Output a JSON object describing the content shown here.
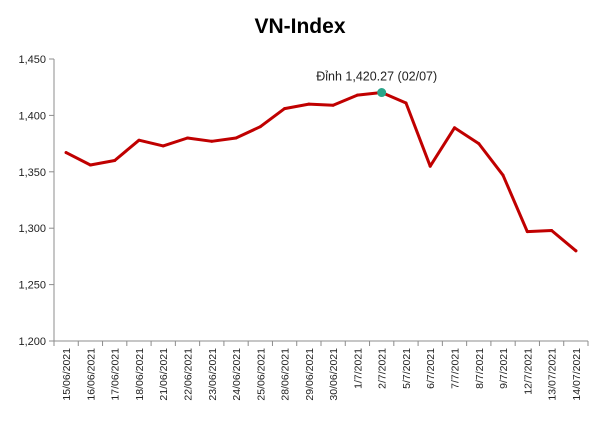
{
  "chart_data": {
    "type": "line",
    "title": "VN-Index",
    "xlabel": "",
    "ylabel": "",
    "ylim": [
      1200,
      1450
    ],
    "yticks": [
      1200,
      1250,
      1300,
      1350,
      1400,
      1450
    ],
    "ytick_labels": [
      "1,200",
      "1,250",
      "1,300",
      "1,350",
      "1,400",
      "1,450"
    ],
    "grid": false,
    "categories": [
      "15/06/2021",
      "16/06/2021",
      "17/06/2021",
      "18/06/2021",
      "21/06/2021",
      "22/06/2021",
      "23/06/2021",
      "24/06/2021",
      "25/06/2021",
      "28/06/2021",
      "29/06/2021",
      "30/06/2021",
      "1/7/2021",
      "2/7/2021",
      "5/7/2021",
      "6/7/2021",
      "7/7/2021",
      "8/7/2021",
      "9/7/2021",
      "12/7/2021",
      "13/07/2021",
      "14/07/2021"
    ],
    "series": [
      {
        "name": "VN-Index",
        "color": "#c00000",
        "values": [
          1367,
          1356,
          1360,
          1378,
          1373,
          1380,
          1377,
          1380,
          1390,
          1406,
          1410,
          1409,
          1418,
          1420.27,
          1411,
          1355,
          1389,
          1375,
          1347,
          1297,
          1298,
          1280
        ]
      }
    ],
    "annotation": {
      "text": "Đỉnh 1,420.27 (02/07)",
      "index": 13,
      "value": 1420.27,
      "marker_color": "#2aa58a"
    }
  }
}
